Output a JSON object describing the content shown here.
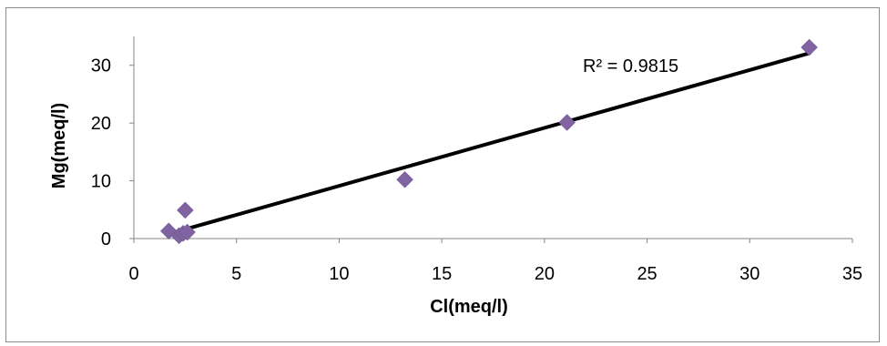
{
  "chart_data": {
    "type": "scatter",
    "title": "",
    "xlabel": "Cl(meq/l)",
    "ylabel": "Mg(meq/l)",
    "xlim": [
      0,
      35
    ],
    "ylim": [
      0,
      35
    ],
    "x_ticks": [
      0,
      5,
      10,
      15,
      20,
      25,
      30,
      35
    ],
    "y_ticks": [
      0,
      10,
      20,
      30
    ],
    "grid": false,
    "legend": "none",
    "marker": "diamond",
    "marker_color": "#8064A2",
    "points": [
      {
        "x": 1.7,
        "y": 1.3
      },
      {
        "x": 2.2,
        "y": 0.5
      },
      {
        "x": 2.4,
        "y": 0.9
      },
      {
        "x": 2.6,
        "y": 1.1
      },
      {
        "x": 2.5,
        "y": 4.9
      },
      {
        "x": 13.2,
        "y": 10.2
      },
      {
        "x": 21.1,
        "y": 20.1
      },
      {
        "x": 32.9,
        "y": 33.1
      }
    ],
    "trendline": {
      "type": "linear",
      "x_start": 1.7,
      "y_start": 0.8,
      "x_end": 32.9,
      "y_end": 32.1,
      "color": "#000000"
    },
    "annotation": "R² = 0.9815"
  }
}
